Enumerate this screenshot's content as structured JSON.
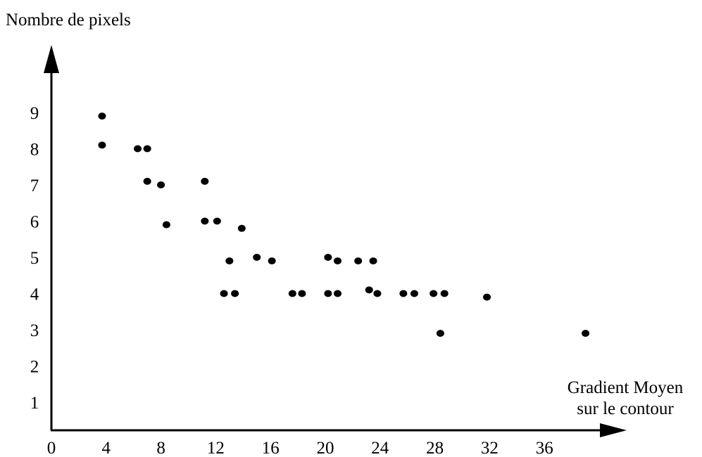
{
  "chart_data": {
    "type": "scatter",
    "title": "",
    "ylabel": "Nombre de pixels",
    "xlabel_lines": [
      "Gradient Moyen",
      "sur le contour"
    ],
    "xlim": [
      0,
      40
    ],
    "ylim": [
      0,
      10
    ],
    "x_ticks": [
      "0",
      "4",
      "8",
      "12",
      "16",
      "20",
      "24",
      "28",
      "32",
      "36"
    ],
    "y_ticks": [
      "1",
      "2",
      "3",
      "4",
      "5",
      "6",
      "7",
      "8",
      "9"
    ],
    "grid": false,
    "series": [
      {
        "color": "#000000",
        "points": [
          {
            "x": 3.7,
            "y": 8.9
          },
          {
            "x": 3.7,
            "y": 8.1
          },
          {
            "x": 6.3,
            "y": 8.0
          },
          {
            "x": 7.0,
            "y": 8.0
          },
          {
            "x": 7.0,
            "y": 7.1
          },
          {
            "x": 8.0,
            "y": 7.0
          },
          {
            "x": 8.4,
            "y": 5.9
          },
          {
            "x": 11.2,
            "y": 7.1
          },
          {
            "x": 11.2,
            "y": 6.0
          },
          {
            "x": 12.1,
            "y": 6.0
          },
          {
            "x": 13.9,
            "y": 5.8
          },
          {
            "x": 13.0,
            "y": 4.9
          },
          {
            "x": 12.6,
            "y": 4.0
          },
          {
            "x": 13.4,
            "y": 4.0
          },
          {
            "x": 15.0,
            "y": 5.0
          },
          {
            "x": 16.1,
            "y": 4.9
          },
          {
            "x": 17.6,
            "y": 4.0
          },
          {
            "x": 18.3,
            "y": 4.0
          },
          {
            "x": 20.2,
            "y": 5.0
          },
          {
            "x": 20.9,
            "y": 4.9
          },
          {
            "x": 20.2,
            "y": 4.0
          },
          {
            "x": 20.9,
            "y": 4.0
          },
          {
            "x": 22.4,
            "y": 4.9
          },
          {
            "x": 23.2,
            "y": 4.1
          },
          {
            "x": 23.5,
            "y": 4.9
          },
          {
            "x": 23.8,
            "y": 4.0
          },
          {
            "x": 25.7,
            "y": 4.0
          },
          {
            "x": 26.5,
            "y": 4.0
          },
          {
            "x": 27.9,
            "y": 4.0
          },
          {
            "x": 28.7,
            "y": 4.0
          },
          {
            "x": 28.4,
            "y": 2.9
          },
          {
            "x": 31.8,
            "y": 3.9
          },
          {
            "x": 39.0,
            "y": 2.9
          }
        ]
      }
    ]
  }
}
